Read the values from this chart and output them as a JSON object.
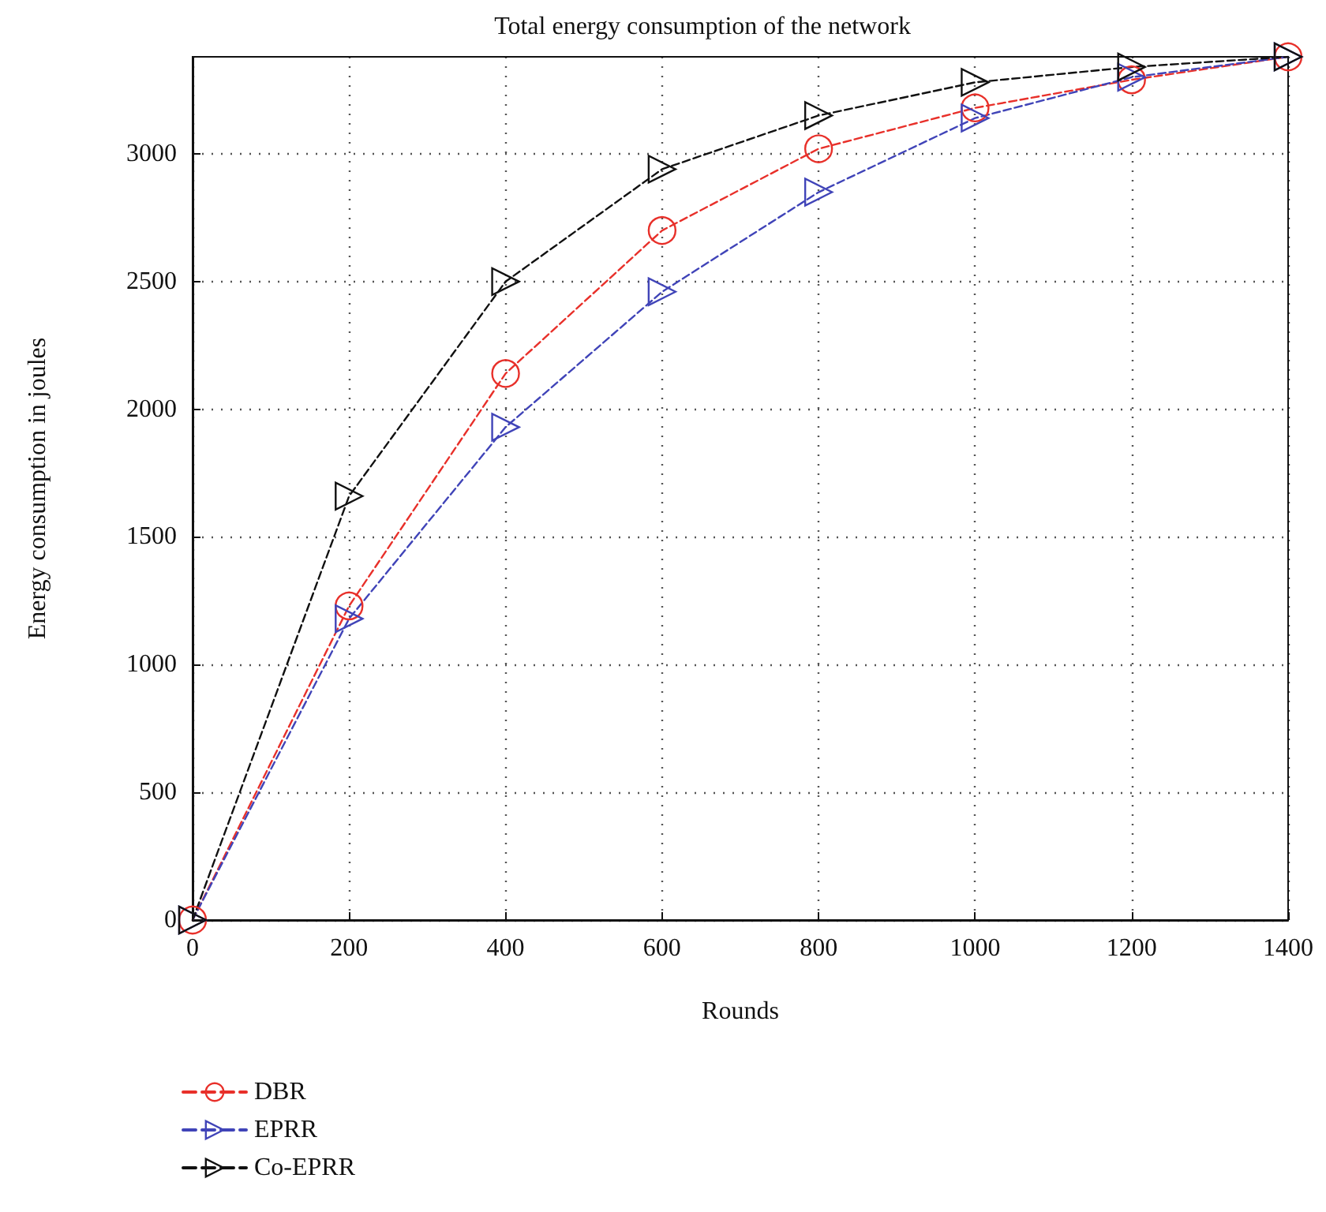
{
  "chart_data": {
    "type": "line",
    "title": "Total energy consumption of the network",
    "xlabel": "Rounds",
    "ylabel": "Energy consumption in joules",
    "x": [
      0,
      200,
      400,
      600,
      800,
      1000,
      1200,
      1400
    ],
    "series": [
      {
        "name": "DBR",
        "color": "#e8302a",
        "marker": "circle",
        "values": [
          0,
          1230,
          2140,
          2700,
          3020,
          3180,
          3290,
          3380
        ]
      },
      {
        "name": "EPRR",
        "color": "#4044b8",
        "marker": "triangle",
        "values": [
          0,
          1180,
          1930,
          2460,
          2850,
          3140,
          3300,
          3380
        ]
      },
      {
        "name": "Co-EPRR",
        "color": "#111111",
        "marker": "triangle",
        "values": [
          0,
          1660,
          2500,
          2940,
          3150,
          3280,
          3340,
          3380
        ]
      }
    ],
    "xlim": [
      0,
      1400
    ],
    "xticks": [
      0,
      200,
      400,
      600,
      800,
      1000,
      1200,
      1400
    ],
    "ylim": [
      0,
      3380
    ],
    "yticks": [
      0,
      500,
      1000,
      1500,
      2000,
      2500,
      3000
    ],
    "grid": true,
    "legend": "bottom left",
    "line_style": "dashed"
  }
}
